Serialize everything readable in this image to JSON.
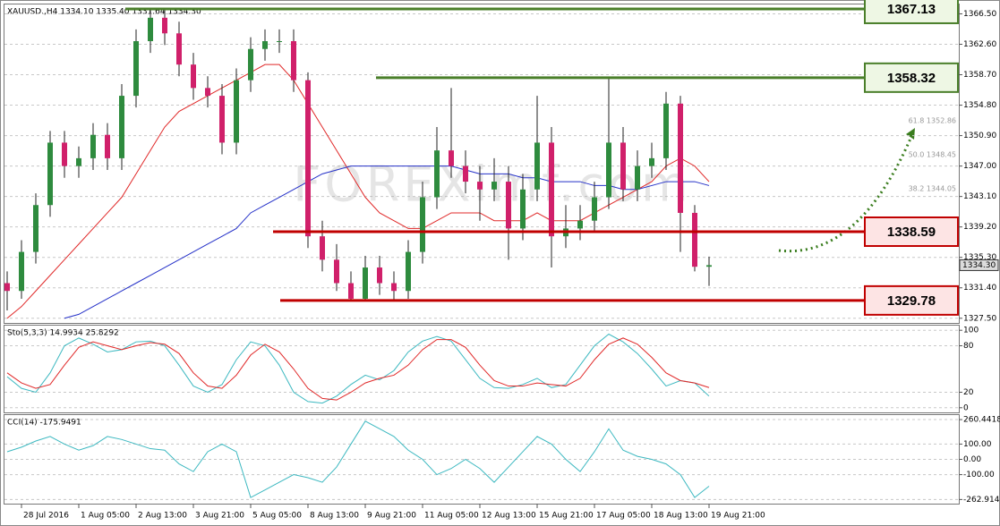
{
  "chart_data": [
    {
      "type": "candlestick",
      "title": "XAUUSD.,H4  1334.10 1335.40 1331.64 1334.30",
      "categories": [
        null,
        "28 Jul 2016",
        null,
        null,
        null,
        "1 Aug 05:00",
        null,
        null,
        null,
        "2 Aug 13:00",
        null,
        null,
        null,
        "3 Aug 21:00",
        null,
        null,
        null,
        "5 Aug 05:00",
        null,
        null,
        null,
        "8 Aug 13:00",
        null,
        null,
        null,
        "9 Aug 21:00",
        null,
        null,
        null,
        "11 Aug 05:00",
        null,
        null,
        null,
        "12 Aug 13:00",
        null,
        null,
        null,
        "15 Aug 21:00",
        null,
        null,
        null,
        "17 Aug 05:00",
        null,
        null,
        null,
        "18 Aug 13:00",
        null,
        null,
        null,
        "19 Aug 21:00"
      ],
      "open": [
        1332,
        1331,
        1336,
        1342,
        1350,
        1347,
        1348,
        1351,
        1348,
        1356,
        1363,
        1366,
        1364,
        1360,
        1357,
        1356,
        1350,
        1358,
        1362,
        1363,
        1363,
        1358,
        1338,
        1335,
        1332,
        1330,
        1334,
        1332,
        1331,
        1336,
        1343,
        1349,
        1347,
        1345,
        1344,
        1345,
        1339,
        1344,
        1350,
        1338,
        1339,
        1340,
        1343,
        1350,
        1344,
        1347,
        1348,
        1355,
        1341,
        1334.1
      ],
      "high": [
        1333.5,
        1337.5,
        1343.5,
        1351.5,
        1351.5,
        1349.5,
        1352.5,
        1352.5,
        1357.5,
        1364.5,
        1367.13,
        1367,
        1365.5,
        1361.5,
        1358.5,
        1357.5,
        1359.5,
        1363.5,
        1364.5,
        1364.5,
        1364.5,
        1359,
        1340,
        1337,
        1333.5,
        1335.5,
        1335.5,
        1333.5,
        1337.5,
        1345,
        1352,
        1357,
        1349,
        1347,
        1348,
        1347,
        1346,
        1356,
        1352,
        1342,
        1342,
        1345,
        1358.32,
        1352,
        1349,
        1350,
        1356.5,
        1356,
        1342,
        1335.4
      ],
      "low": [
        1328.5,
        1330,
        1334.5,
        1340.5,
        1345.5,
        1345.5,
        1346.5,
        1346.5,
        1346.5,
        1354.5,
        1361.5,
        1362.5,
        1358.5,
        1355.5,
        1354.5,
        1348.5,
        1348.5,
        1356.5,
        1360.5,
        1361.5,
        1356.5,
        1336.5,
        1333.5,
        1331,
        1329.78,
        1329.78,
        1330.5,
        1329.8,
        1330,
        1334.5,
        1341.5,
        1345.5,
        1343.5,
        1340,
        1342.5,
        1335,
        1337.5,
        1342.5,
        1334,
        1336.5,
        1337.5,
        1338.5,
        1341.5,
        1342.5,
        1342.5,
        1345.5,
        1346.5,
        1336,
        1333.5,
        1331.64
      ],
      "close": [
        1331,
        1336,
        1342,
        1350,
        1347,
        1348,
        1351,
        1348,
        1356,
        1363,
        1366,
        1364,
        1360,
        1357,
        1356,
        1350,
        1358,
        1362,
        1363,
        1363,
        1358,
        1338,
        1335,
        1332,
        1330,
        1334,
        1332,
        1331,
        1336,
        1343,
        1349,
        1347,
        1345,
        1344,
        1345,
        1339,
        1344,
        1350,
        1338,
        1339,
        1340,
        1343,
        1350,
        1344,
        1347,
        1348,
        1355,
        1341,
        1334.1,
        1334.3
      ],
      "up_color": "#2e8b3e",
      "down_color": "#d0206a",
      "series": [
        {
          "color": "#e02828",
          "values": [
            1327.5,
            1329,
            1331,
            1333,
            1335,
            1337,
            1339,
            1341,
            1343,
            1346,
            1349,
            1352,
            1354,
            1355,
            1356,
            1357,
            1358,
            1359,
            1360,
            1360,
            1358,
            1355,
            1352,
            1349,
            1346,
            1343,
            1341,
            1340,
            1339,
            1339,
            1340,
            1341,
            1341,
            1341,
            1340,
            1340,
            1340,
            1341,
            1340,
            1340,
            1340,
            1341,
            1342,
            1343,
            1344,
            1345,
            1347,
            1348,
            1347,
            1345
          ]
        },
        {
          "color": "#2430c8",
          "values": [
            null,
            null,
            null,
            null,
            1327.5,
            1328,
            1329,
            1330,
            1331,
            1332,
            1333,
            1334,
            1335,
            1336,
            1337,
            1338,
            1339,
            1341,
            1342,
            1343,
            1344,
            1345,
            1346,
            1346.5,
            1347,
            1347,
            1347,
            1347,
            1347,
            1347,
            1347,
            1347,
            1346.5,
            1346,
            1346,
            1346,
            1345.5,
            1345.5,
            1345,
            1345,
            1345,
            1344.5,
            1344.5,
            1344,
            1344,
            1344.5,
            1345,
            1345,
            1345,
            1344.5
          ]
        }
      ],
      "levels": [
        {
          "value": 1367.13,
          "color": "#4a7f2a"
        },
        {
          "value": 1358.32,
          "color": "#4a7f2a"
        },
        {
          "value": 1338.59,
          "color": "#c00000"
        },
        {
          "value": 1329.78,
          "color": "#c00000"
        }
      ],
      "annotations": [
        "61.8 1352.86",
        "50.0 1348.45",
        "38.2 1344.05"
      ],
      "watermark": "FOREXimf.com",
      "last_price": {
        "value": 1334.3,
        "label": "1334.30"
      },
      "ylim": [
        1326.9,
        1367.7
      ],
      "yticks": [
        {
          "value": 1327.5,
          "label": "1327.50"
        },
        {
          "value": 1331.4,
          "label": "1331.40"
        },
        {
          "value": 1335.3,
          "label": "1335.30"
        },
        {
          "value": 1339.2,
          "label": "1339.20"
        },
        {
          "value": 1343.1,
          "label": "1343.10"
        },
        {
          "value": 1347,
          "label": "1347.00"
        },
        {
          "value": 1350.9,
          "label": "1350.90"
        },
        {
          "value": 1354.8,
          "label": "1354.80"
        },
        {
          "value": 1358.7,
          "label": "1358.70"
        },
        {
          "value": 1362.6,
          "label": "1362.60"
        },
        {
          "value": 1366.5,
          "label": "1366.50"
        }
      ]
    },
    {
      "type": "line",
      "title": "Sto(5,3,3) 14.9934 25.8292",
      "series": [
        {
          "color": "#3cb8c0",
          "values": [
            40,
            25,
            20,
            45,
            80,
            90,
            82,
            72,
            75,
            85,
            86,
            80,
            55,
            28,
            20,
            30,
            62,
            85,
            80,
            55,
            20,
            8,
            6,
            15,
            30,
            42,
            36,
            48,
            72,
            86,
            92,
            86,
            62,
            38,
            26,
            25,
            30,
            38,
            26,
            30,
            55,
            80,
            95,
            85,
            70,
            50,
            28,
            35,
            32,
            15
          ]
        },
        {
          "color": "#e02828",
          "values": [
            45,
            32,
            25,
            30,
            55,
            78,
            85,
            80,
            75,
            80,
            84,
            82,
            70,
            45,
            28,
            25,
            42,
            68,
            82,
            72,
            50,
            25,
            12,
            10,
            20,
            32,
            38,
            42,
            55,
            75,
            88,
            88,
            78,
            55,
            35,
            28,
            28,
            32,
            30,
            28,
            38,
            62,
            82,
            90,
            82,
            65,
            45,
            35,
            32,
            26
          ]
        }
      ],
      "ylim": [
        -6,
        106
      ],
      "yticks": [
        0,
        20,
        80,
        100
      ]
    },
    {
      "type": "line",
      "title": "CCI(14) -175.9491",
      "series": [
        {
          "color": "#3cb8c0",
          "values": [
            50,
            80,
            120,
            150,
            100,
            60,
            90,
            150,
            130,
            100,
            70,
            60,
            -30,
            -80,
            50,
            100,
            50,
            -250,
            -200,
            -150,
            -100,
            -120,
            -150,
            -50,
            100,
            250,
            200,
            150,
            60,
            0,
            -100,
            -60,
            0,
            -60,
            -150,
            -50,
            50,
            150,
            100,
            0,
            -80,
            50,
            200,
            60,
            20,
            0,
            -30,
            -100,
            -250,
            -176
          ]
        }
      ],
      "ylim": [
        -290,
        290
      ],
      "yticks": [
        260.4418,
        {
          "value": 100,
          "label": "100.00"
        },
        {
          "value": 0,
          "label": "0.00"
        },
        {
          "value": -100,
          "label": "-100.00"
        },
        -262.914
      ]
    }
  ]
}
